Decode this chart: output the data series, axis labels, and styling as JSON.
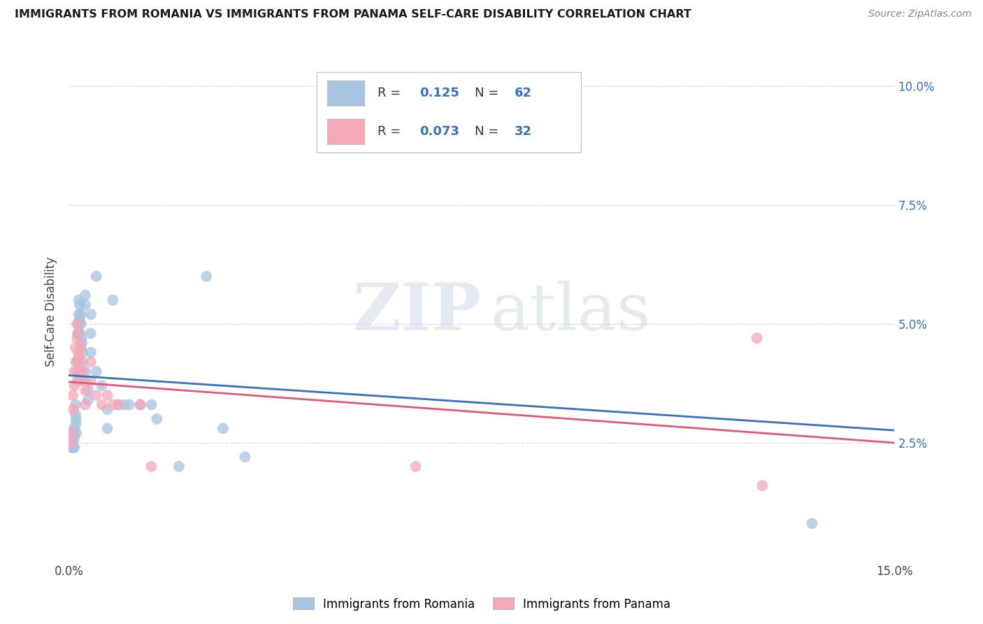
{
  "title": "IMMIGRANTS FROM ROMANIA VS IMMIGRANTS FROM PANAMA SELF-CARE DISABILITY CORRELATION CHART",
  "source": "Source: ZipAtlas.com",
  "ylabel": "Self-Care Disability",
  "xlim": [
    0.0,
    0.15
  ],
  "ylim": [
    0.0,
    0.105
  ],
  "R_romania": 0.125,
  "N_romania": 62,
  "R_panama": 0.073,
  "N_panama": 32,
  "color_romania": "#a8c4e0",
  "color_panama": "#f4a8b8",
  "line_color_romania": "#3a6fba",
  "line_color_panama": "#e05878",
  "romania_x": [
    0.0005,
    0.0005,
    0.0005,
    0.0005,
    0.0007,
    0.0007,
    0.0008,
    0.0008,
    0.001,
    0.001,
    0.001,
    0.001,
    0.0012,
    0.0012,
    0.0013,
    0.0013,
    0.0014,
    0.0015,
    0.0015,
    0.0015,
    0.0016,
    0.0017,
    0.0018,
    0.0018,
    0.0019,
    0.0019,
    0.002,
    0.002,
    0.002,
    0.0022,
    0.0022,
    0.0023,
    0.0024,
    0.0025,
    0.0025,
    0.003,
    0.003,
    0.003,
    0.003,
    0.0035,
    0.0035,
    0.004,
    0.004,
    0.004,
    0.005,
    0.005,
    0.006,
    0.007,
    0.007,
    0.008,
    0.009,
    0.01,
    0.011,
    0.013,
    0.015,
    0.016,
    0.02,
    0.025,
    0.028,
    0.032,
    0.063,
    0.135
  ],
  "romania_y": [
    0.027,
    0.026,
    0.025,
    0.024,
    0.027,
    0.025,
    0.026,
    0.024,
    0.028,
    0.027,
    0.026,
    0.024,
    0.033,
    0.031,
    0.03,
    0.029,
    0.027,
    0.042,
    0.04,
    0.038,
    0.05,
    0.048,
    0.055,
    0.052,
    0.05,
    0.048,
    0.054,
    0.051,
    0.048,
    0.052,
    0.05,
    0.047,
    0.046,
    0.044,
    0.042,
    0.056,
    0.054,
    0.04,
    0.038,
    0.036,
    0.034,
    0.052,
    0.048,
    0.044,
    0.06,
    0.04,
    0.037,
    0.032,
    0.028,
    0.055,
    0.033,
    0.033,
    0.033,
    0.033,
    0.033,
    0.03,
    0.02,
    0.06,
    0.028,
    0.022,
    0.087,
    0.008
  ],
  "panama_x": [
    0.0005,
    0.0005,
    0.0007,
    0.0008,
    0.001,
    0.001,
    0.0012,
    0.0013,
    0.0015,
    0.0015,
    0.0016,
    0.0017,
    0.0018,
    0.0019,
    0.002,
    0.002,
    0.0022,
    0.0025,
    0.003,
    0.003,
    0.004,
    0.004,
    0.005,
    0.006,
    0.007,
    0.008,
    0.009,
    0.013,
    0.015,
    0.063,
    0.125,
    0.126
  ],
  "panama_y": [
    0.027,
    0.025,
    0.035,
    0.032,
    0.04,
    0.037,
    0.045,
    0.042,
    0.05,
    0.047,
    0.048,
    0.044,
    0.043,
    0.04,
    0.042,
    0.038,
    0.045,
    0.04,
    0.036,
    0.033,
    0.042,
    0.038,
    0.035,
    0.033,
    0.035,
    0.033,
    0.033,
    0.033,
    0.02,
    0.02,
    0.047,
    0.016
  ],
  "watermark_zip": "ZIP",
  "watermark_atlas": "atlas",
  "background_color": "#ffffff",
  "grid_color": "#d8d8d8"
}
